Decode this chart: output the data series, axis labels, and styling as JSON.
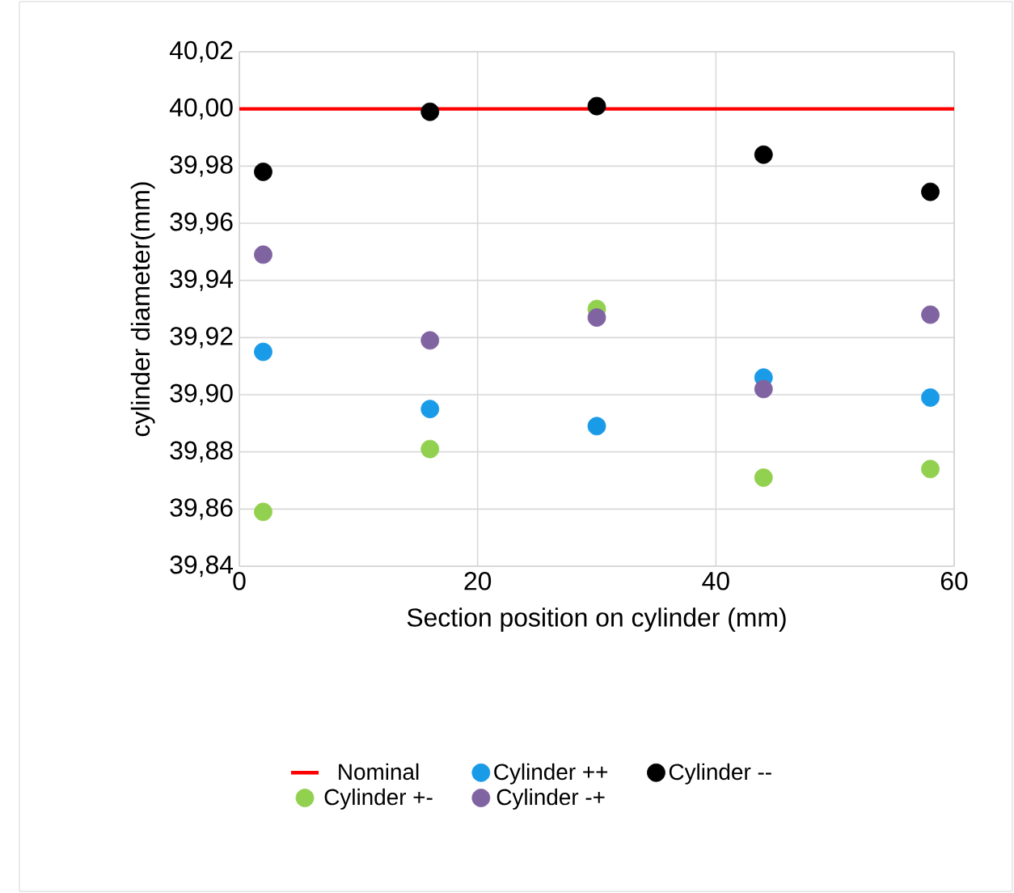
{
  "chart_data": {
    "type": "scatter",
    "xlabel": "Section position on cylinder (mm)",
    "ylabel": "cylinder  diameter(mm)",
    "xlim": [
      0,
      60
    ],
    "xticks": [
      0,
      20,
      40,
      60
    ],
    "ylim": [
      39.84,
      40.02
    ],
    "yticks": [
      {
        "value": 39.84,
        "label": "39,84"
      },
      {
        "value": 39.86,
        "label": "39,86"
      },
      {
        "value": 39.88,
        "label": "39,88"
      },
      {
        "value": 39.9,
        "label": "39,90"
      },
      {
        "value": 39.92,
        "label": "39,92"
      },
      {
        "value": 39.94,
        "label": "39,94"
      },
      {
        "value": 39.96,
        "label": "39,96"
      },
      {
        "value": 39.98,
        "label": "39,98"
      },
      {
        "value": 40.0,
        "label": "40,00"
      },
      {
        "value": 40.02,
        "label": "40,02"
      }
    ],
    "grid": true,
    "legend": "bottom",
    "marker": "circle",
    "series": [
      {
        "name": "Nominal",
        "type": "line",
        "marker": "none",
        "color": "#ff0000",
        "x": [
          0,
          60
        ],
        "values": [
          40.0,
          40.0
        ]
      },
      {
        "name": "Cylinder ++",
        "color": "#1a9be8",
        "x": [
          2,
          16,
          30,
          44,
          58
        ],
        "values": [
          39.915,
          39.895,
          39.889,
          39.906,
          39.899
        ]
      },
      {
        "name": "Cylinder --",
        "color": "#000000",
        "x": [
          2,
          16,
          30,
          44,
          58
        ],
        "values": [
          39.978,
          39.999,
          40.001,
          39.984,
          39.971
        ]
      },
      {
        "name": "Cylinder +-",
        "color": "#92d050",
        "x": [
          2,
          16,
          30,
          44,
          58
        ],
        "values": [
          39.859,
          39.881,
          39.93,
          39.871,
          39.874
        ]
      },
      {
        "name": "Cylinder -+",
        "color": "#8064a2",
        "x": [
          2,
          16,
          30,
          44,
          58
        ],
        "values": [
          39.949,
          39.919,
          39.927,
          39.902,
          39.928
        ]
      }
    ]
  }
}
